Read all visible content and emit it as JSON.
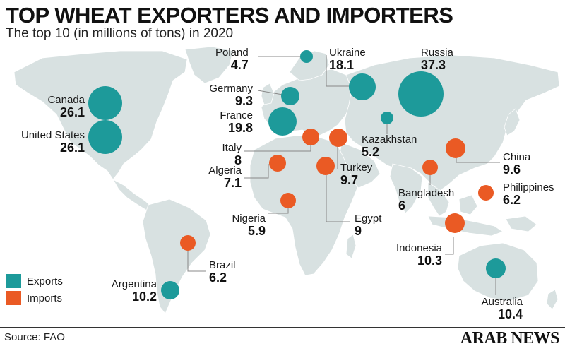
{
  "title": "TOP WHEAT EXPORTERS AND IMPORTERS",
  "subtitle": "The top 10 (in millions of tons) in 2020",
  "legend": {
    "exports": "Exports",
    "imports": "Imports"
  },
  "colors": {
    "exports": "#1d9a9a",
    "imports": "#ea5a24",
    "land": "#d8e1e1",
    "leader": "#888888"
  },
  "countries": [
    {
      "id": "poland",
      "name": "Poland",
      "value": "4.7",
      "type": "exports"
    },
    {
      "id": "ukraine",
      "name": "Ukraine",
      "value": "18.1",
      "type": "exports"
    },
    {
      "id": "russia",
      "name": "Russia",
      "value": "37.3",
      "type": "exports"
    },
    {
      "id": "canada",
      "name": "Canada",
      "value": "26.1",
      "type": "exports"
    },
    {
      "id": "germany",
      "name": "Germany",
      "value": "9.3",
      "type": "exports"
    },
    {
      "id": "france",
      "name": "France",
      "value": "19.8",
      "type": "exports"
    },
    {
      "id": "united-states",
      "name": "United States",
      "value": "26.1",
      "type": "exports"
    },
    {
      "id": "kazakhstan",
      "name": "Kazakhstan",
      "value": "5.2",
      "type": "exports"
    },
    {
      "id": "italy",
      "name": "Italy",
      "value": "8",
      "type": "imports"
    },
    {
      "id": "turkey",
      "name": "Turkey",
      "value": "9.7",
      "type": "imports"
    },
    {
      "id": "china",
      "name": "China",
      "value": "9.6",
      "type": "imports"
    },
    {
      "id": "algeria",
      "name": "Algeria",
      "value": "7.1",
      "type": "imports"
    },
    {
      "id": "bangladesh",
      "name": "Bangladesh",
      "value": "6",
      "type": "imports"
    },
    {
      "id": "philippines",
      "name": "Philippines",
      "value": "6.2",
      "type": "imports"
    },
    {
      "id": "nigeria",
      "name": "Nigeria",
      "value": "5.9",
      "type": "imports"
    },
    {
      "id": "egypt",
      "name": "Egypt",
      "value": "9",
      "type": "imports"
    },
    {
      "id": "indonesia",
      "name": "Indonesia",
      "value": "10.3",
      "type": "imports"
    },
    {
      "id": "brazil",
      "name": "Brazil",
      "value": "6.2",
      "type": "imports"
    },
    {
      "id": "argentina",
      "name": "Argentina",
      "value": "10.2",
      "type": "exports"
    },
    {
      "id": "australia",
      "name": "Australia",
      "value": "10.4",
      "type": "exports"
    }
  ],
  "source": "Source: FAO",
  "brand": "ARAB NEWS"
}
